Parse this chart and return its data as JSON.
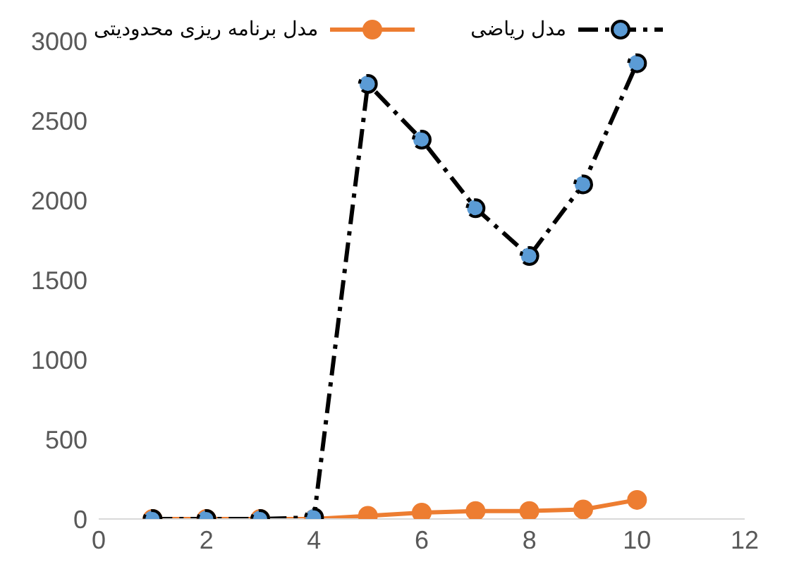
{
  "chart_data": {
    "type": "line",
    "x": [
      1,
      2,
      3,
      4,
      5,
      6,
      7,
      8,
      9,
      10
    ],
    "xlim": [
      0,
      12
    ],
    "xticks": [
      0,
      2,
      4,
      6,
      8,
      10,
      12
    ],
    "ylim": [
      0,
      3000
    ],
    "yticks": [
      0,
      500,
      1000,
      1500,
      2000,
      2500,
      3000
    ],
    "grid": false,
    "legend": "top",
    "marker": "circle",
    "series": [
      {
        "name": "مدل ریاضی",
        "color": "#000000",
        "line_style": "dashed",
        "values": [
          0,
          0,
          0,
          10,
          2730,
          2380,
          1950,
          1650,
          2100,
          2860
        ]
      },
      {
        "name": "مدل برنامه ریزی محدودیتی",
        "color": "#ed7d31",
        "line_style": "solid",
        "values": [
          0,
          0,
          0,
          0,
          20,
          40,
          50,
          50,
          60,
          120
        ]
      }
    ]
  }
}
